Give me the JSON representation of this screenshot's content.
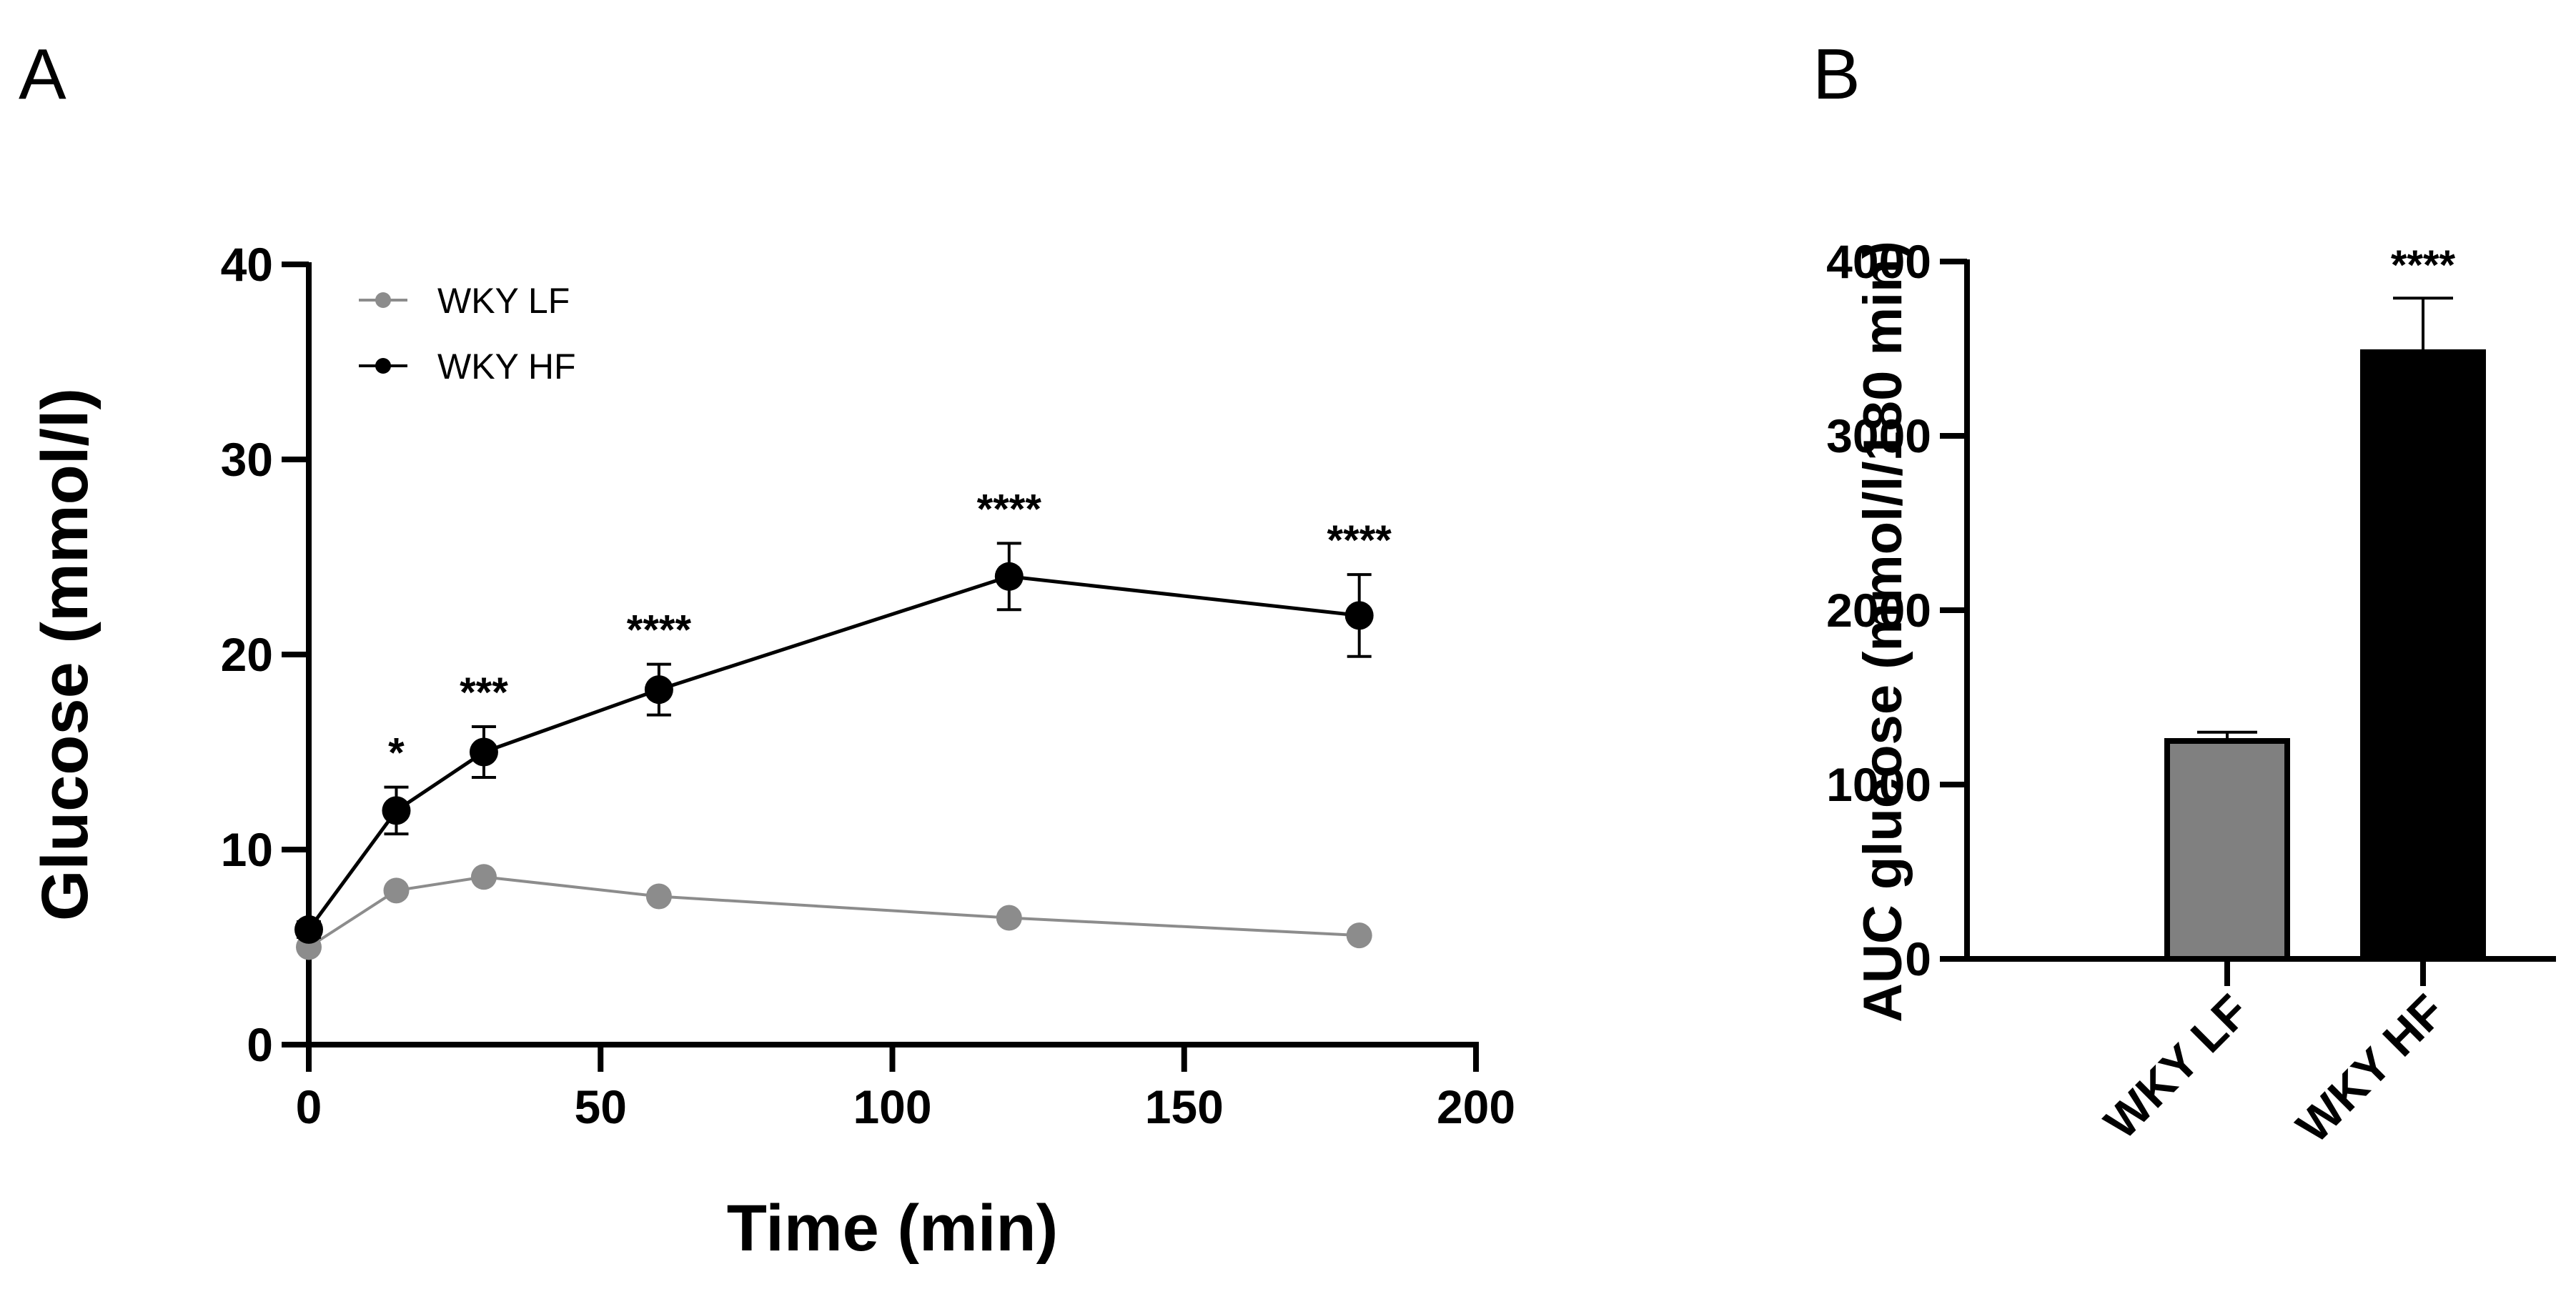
{
  "panels": {
    "a_label": "A",
    "b_label": "B"
  },
  "colors": {
    "lf": "#8c8c8c",
    "hf": "#000000",
    "axis": "#000000"
  },
  "chart_data": [
    {
      "type": "line",
      "panel": "A",
      "xlabel": "Time (min)",
      "ylabel": "Glucose (mmol/l)",
      "xlim": [
        0,
        200
      ],
      "ylim": [
        0,
        40
      ],
      "xticks": [
        0,
        50,
        100,
        150,
        200
      ],
      "yticks": [
        0,
        10,
        20,
        30,
        40
      ],
      "xtick_labels": [
        "0",
        "50",
        "100",
        "150",
        "200"
      ],
      "ytick_labels": [
        "0",
        "10",
        "20",
        "30",
        "40"
      ],
      "grid": false,
      "legend_position": "top-left",
      "x": [
        0,
        15,
        30,
        60,
        120,
        180
      ],
      "series": [
        {
          "name": "WKY LF",
          "color": "#8c8c8c",
          "values": [
            5.0,
            7.9,
            8.6,
            7.6,
            6.5,
            5.6
          ],
          "errors": [
            0.3,
            0.3,
            0.3,
            0.3,
            0.3,
            0.3
          ]
        },
        {
          "name": "WKY HF",
          "color": "#000000",
          "values": [
            5.9,
            12.0,
            15.0,
            18.2,
            24.0,
            22.0
          ],
          "errors": [
            0.4,
            1.2,
            1.3,
            1.3,
            1.7,
            2.1
          ]
        }
      ],
      "annotations": [
        {
          "x": 15,
          "text": "*"
        },
        {
          "x": 30,
          "text": "***"
        },
        {
          "x": 60,
          "text": "****"
        },
        {
          "x": 120,
          "text": "****"
        },
        {
          "x": 180,
          "text": "****"
        }
      ]
    },
    {
      "type": "bar",
      "panel": "B",
      "ylabel": "AUC glucose (mmol/l/180 min)",
      "ylim": [
        0,
        4000
      ],
      "yticks": [
        0,
        1000,
        2000,
        3000,
        4000
      ],
      "ytick_labels": [
        "0",
        "1000",
        "2000",
        "3000",
        "4000"
      ],
      "grid": false,
      "categories": [
        "WKY LF",
        "WKY HF"
      ],
      "values": [
        1250,
        3480
      ],
      "errors": [
        50,
        310
      ],
      "colors": [
        "#808080",
        "#000000"
      ],
      "annotations": [
        {
          "category": "WKY HF",
          "text": "****"
        }
      ]
    }
  ]
}
